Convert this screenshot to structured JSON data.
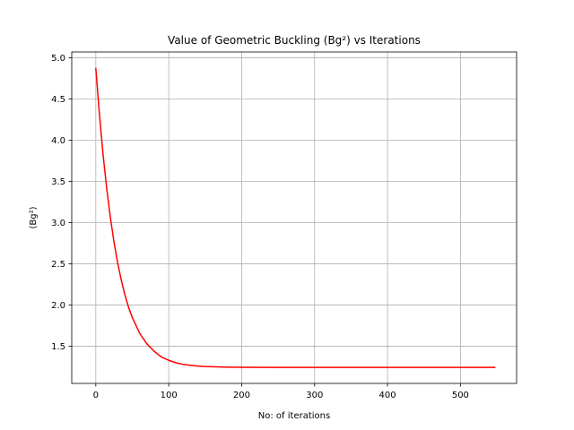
{
  "chart_data": {
    "type": "line",
    "title": "Value of Geometric Buckling (Bg²) vs Iterations",
    "xlabel": "No: of iterations",
    "ylabel": "(Bg²)",
    "xlim": [
      -33,
      577
    ],
    "ylim": [
      1.05,
      5.07
    ],
    "grid": true,
    "x_ticks": [
      {
        "value": 0,
        "label": "0"
      },
      {
        "value": 100,
        "label": "100"
      },
      {
        "value": 200,
        "label": "200"
      },
      {
        "value": 300,
        "label": "300"
      },
      {
        "value": 400,
        "label": "400"
      },
      {
        "value": 500,
        "label": "500"
      }
    ],
    "y_ticks": [
      {
        "value": 1.5,
        "label": "1.5"
      },
      {
        "value": 2.0,
        "label": "2.0"
      },
      {
        "value": 2.5,
        "label": "2.5"
      },
      {
        "value": 3.0,
        "label": "3.0"
      },
      {
        "value": 3.5,
        "label": "3.5"
      },
      {
        "value": 4.0,
        "label": "4.0"
      },
      {
        "value": 4.5,
        "label": "4.5"
      },
      {
        "value": 5.0,
        "label": "5.0"
      }
    ],
    "series": [
      {
        "color": "#ff0000",
        "x": [
          0,
          5,
          10,
          15,
          20,
          25,
          30,
          35,
          40,
          45,
          50,
          60,
          70,
          80,
          90,
          100,
          110,
          120,
          130,
          140,
          150,
          175,
          200,
          250,
          300,
          350,
          400,
          450,
          500,
          547
        ],
        "y": [
          4.87,
          4.31,
          3.82,
          3.41,
          3.06,
          2.76,
          2.51,
          2.3,
          2.12,
          1.97,
          1.85,
          1.66,
          1.53,
          1.44,
          1.37,
          1.33,
          1.3,
          1.28,
          1.27,
          1.26,
          1.255,
          1.248,
          1.245,
          1.244,
          1.244,
          1.244,
          1.244,
          1.244,
          1.244,
          1.244
        ]
      }
    ]
  }
}
